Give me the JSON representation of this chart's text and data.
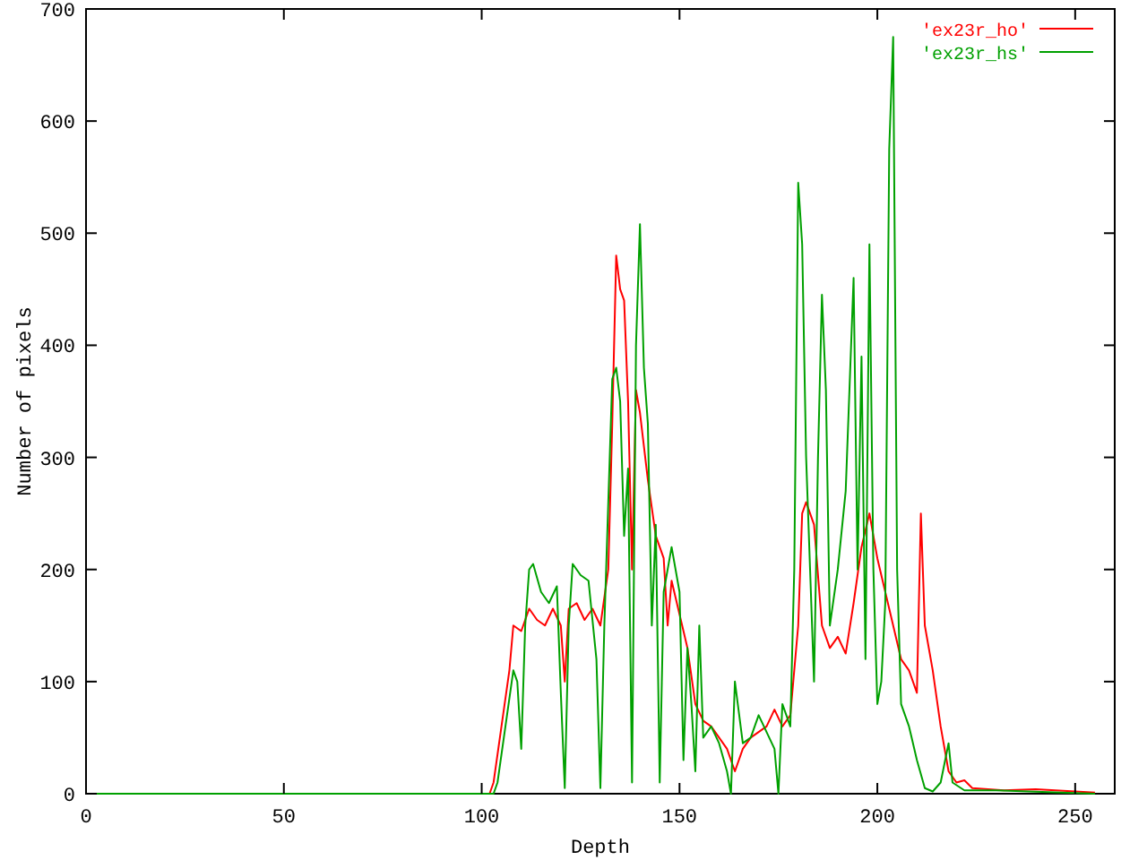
{
  "chart_data": {
    "type": "line",
    "xlabel": "Depth",
    "ylabel": "Number of pixels",
    "xlim": [
      0,
      260
    ],
    "ylim": [
      0,
      700
    ],
    "xticks": [
      0,
      50,
      100,
      150,
      200,
      250
    ],
    "yticks": [
      0,
      100,
      200,
      300,
      400,
      500,
      600,
      700
    ],
    "grid": false,
    "legend": "top right",
    "marker": "none",
    "line_style": "solid",
    "series": [
      {
        "name": "'ex23r_ho'",
        "color": "#ff0000",
        "x": [
          0,
          102,
          103,
          105,
          107,
          108,
          110,
          112,
          114,
          116,
          118,
          120,
          121,
          122,
          124,
          126,
          128,
          130,
          132,
          133,
          134,
          135,
          136,
          137,
          138,
          139,
          140,
          142,
          144,
          146,
          147,
          148,
          150,
          152,
          154,
          156,
          158,
          160,
          162,
          164,
          166,
          168,
          170,
          172,
          174,
          176,
          178,
          180,
          181,
          182,
          184,
          186,
          188,
          190,
          192,
          194,
          196,
          198,
          200,
          202,
          204,
          206,
          208,
          210,
          211,
          212,
          214,
          216,
          218,
          220,
          222,
          224,
          228,
          232,
          240,
          250,
          255
        ],
        "values": [
          0,
          0,
          10,
          60,
          110,
          150,
          145,
          165,
          155,
          150,
          165,
          150,
          100,
          165,
          170,
          155,
          165,
          150,
          200,
          330,
          480,
          450,
          440,
          350,
          200,
          360,
          340,
          280,
          230,
          210,
          150,
          190,
          160,
          130,
          80,
          65,
          60,
          50,
          40,
          20,
          40,
          50,
          55,
          60,
          75,
          60,
          70,
          150,
          250,
          260,
          240,
          150,
          130,
          140,
          125,
          170,
          220,
          250,
          210,
          180,
          150,
          120,
          110,
          90,
          250,
          150,
          110,
          60,
          20,
          10,
          12,
          5,
          4,
          3,
          4,
          2,
          1
        ]
      },
      {
        "name": "'ex23r_hs'",
        "color": "#00a000",
        "x": [
          0,
          103,
          104,
          106,
          108,
          109,
          110,
          111,
          112,
          113,
          115,
          117,
          119,
          120,
          121,
          122,
          123,
          125,
          127,
          129,
          130,
          131,
          132,
          133,
          134,
          135,
          136,
          137,
          138,
          139,
          140,
          141,
          142,
          143,
          144,
          145,
          146,
          148,
          150,
          151,
          152,
          153,
          154,
          155,
          156,
          158,
          160,
          162,
          163,
          164,
          166,
          168,
          170,
          172,
          174,
          175,
          176,
          178,
          179,
          180,
          181,
          182,
          183,
          184,
          185,
          186,
          187,
          188,
          190,
          192,
          194,
          195,
          196,
          197,
          198,
          199,
          200,
          201,
          202,
          203,
          204,
          205,
          206,
          208,
          210,
          212,
          214,
          216,
          218,
          219,
          222,
          230,
          255
        ],
        "values": [
          0,
          0,
          10,
          60,
          110,
          100,
          40,
          150,
          200,
          205,
          180,
          170,
          185,
          90,
          5,
          150,
          205,
          195,
          190,
          120,
          5,
          150,
          260,
          370,
          380,
          350,
          230,
          290,
          10,
          400,
          508,
          380,
          330,
          150,
          240,
          10,
          180,
          220,
          180,
          30,
          130,
          80,
          20,
          150,
          50,
          60,
          45,
          20,
          0,
          100,
          45,
          50,
          70,
          55,
          40,
          0,
          80,
          60,
          200,
          545,
          490,
          300,
          200,
          100,
          300,
          445,
          360,
          150,
          200,
          270,
          460,
          200,
          390,
          120,
          490,
          200,
          80,
          100,
          170,
          575,
          675,
          200,
          80,
          60,
          30,
          5,
          2,
          10,
          45,
          10,
          3,
          3,
          0
        ]
      }
    ]
  }
}
